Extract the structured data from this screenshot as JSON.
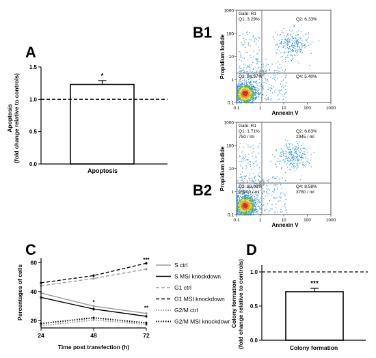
{
  "panels": {
    "A": "A",
    "B1": "B1",
    "B2": "B2",
    "C": "C",
    "D": "D"
  },
  "chart_data": [
    {
      "panel": "A",
      "type": "bar",
      "categories": [
        "Apoptosis"
      ],
      "values": [
        1.23
      ],
      "errors": [
        0.06
      ],
      "significance": [
        "*"
      ],
      "reference_line": 1.0,
      "ylim": [
        0,
        1.5
      ],
      "yticks": [
        "0.0",
        "0.5",
        "1.0",
        "1.5"
      ],
      "ylabel_line1": "Apoptosis",
      "ylabel_line2": "(fold change relative to controls)",
      "xlabel": "Apoptosis"
    },
    {
      "panel": "B1",
      "type": "scatter",
      "xlabel": "Annexin V",
      "ylabel": "Propidium Iodide",
      "gate": "Gate: R1",
      "xticks": [
        "0.1",
        "1",
        "10",
        "100",
        "1000"
      ],
      "yticks": [
        "0.1",
        "1",
        "10",
        "100",
        "1000"
      ],
      "scale": "log",
      "quadrants": {
        "Q1": "Q1: 3.29%",
        "Q2": "Q2: 6.33%",
        "Q3": "Q3: 84.97%",
        "Q4": "Q4: 5.40%"
      }
    },
    {
      "panel": "B2",
      "type": "scatter",
      "xlabel": "Annexin V",
      "ylabel": "Propidium Iodide",
      "gate": "Gate: R1",
      "xticks": [
        "0.1",
        "1",
        "10",
        "100",
        "1000"
      ],
      "yticks": [
        "0.1",
        "1",
        "10",
        "100",
        "1000"
      ],
      "scale": "log",
      "quadrants": {
        "Q1": "Q1: 1.71%",
        "Q2": "Q2: 6.63%",
        "Q3": "Q3: 83.08%",
        "Q4": "Q4: 8.58%"
      },
      "counts": {
        "Q1": "750 / ml",
        "Q2": "2945 / ml",
        "Q3": "35900 / ml",
        "Q4": "3780 / ml"
      }
    },
    {
      "panel": "C",
      "type": "line",
      "x": [
        24,
        48,
        72
      ],
      "xticks": [
        "24",
        "48",
        "72"
      ],
      "yticks": [
        "20",
        "40",
        "60"
      ],
      "ylim": [
        15,
        62
      ],
      "xlabel": "Time post transfection (h)",
      "ylabel": "Percentages of cells",
      "annotations": [
        {
          "x": 48,
          "y": 31.5,
          "text": "*"
        },
        {
          "x": 72,
          "y": 60.5,
          "text": "***"
        },
        {
          "x": 72,
          "y": 27.5,
          "text": "**"
        },
        {
          "x": 72,
          "y": 15.2,
          "text": "*"
        }
      ],
      "series": [
        {
          "name": "S ctrl",
          "values": [
            39,
            30,
            25
          ],
          "errors": [
            1,
            1,
            1
          ],
          "color": "#9a9a9a",
          "dash": "solid"
        },
        {
          "name": "S MSI knockdown",
          "values": [
            36,
            28,
            23
          ],
          "errors": [
            1,
            1.2,
            1
          ],
          "color": "#000000",
          "dash": "solid"
        },
        {
          "name": "G1 ctrl",
          "values": [
            44,
            49,
            55.5
          ],
          "errors": [
            1,
            1,
            1
          ],
          "color": "#9a9a9a",
          "dash": "dash"
        },
        {
          "name": "G1 MSI knockdown",
          "values": [
            46,
            51,
            59.5
          ],
          "errors": [
            1,
            1,
            1
          ],
          "color": "#000000",
          "dash": "dash"
        },
        {
          "name": "G2/M ctrl",
          "values": [
            16.5,
            20.5,
            17.5
          ],
          "errors": [
            1,
            0.8,
            1
          ],
          "color": "#9a9a9a",
          "dash": "dot"
        },
        {
          "name": "G2/M MSI knockdowr",
          "values": [
            18,
            22,
            18.5
          ],
          "errors": [
            1,
            0.8,
            1
          ],
          "color": "#000000",
          "dash": "dot"
        }
      ]
    },
    {
      "panel": "D",
      "type": "bar",
      "categories": [
        "Colony formation"
      ],
      "values": [
        0.71
      ],
      "errors": [
        0.05
      ],
      "significance": [
        "***"
      ],
      "reference_line": 1.0,
      "ylim": [
        0,
        1.05
      ],
      "yticks": [
        "0.0",
        "0.5",
        "1.0"
      ],
      "ylabel_line1": "Colony formation",
      "ylabel_line2": "(fold change relative to controls)",
      "xlabel": "Colony formation"
    }
  ]
}
